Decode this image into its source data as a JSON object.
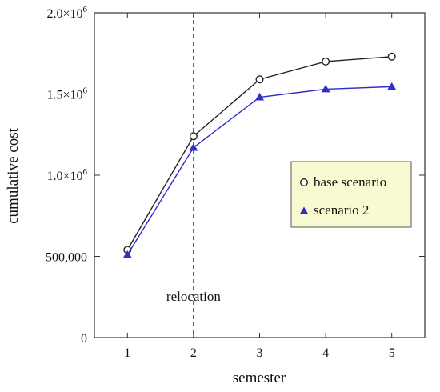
{
  "chart_data": {
    "type": "line",
    "title": "",
    "xlabel": "semester",
    "ylabel": "cumulative cost",
    "x": [
      1,
      2,
      3,
      4,
      5
    ],
    "xlim": [
      0.5,
      5.5
    ],
    "ylim": [
      0,
      2000000
    ],
    "x_ticks": [
      {
        "value": 1,
        "label": "1"
      },
      {
        "value": 2,
        "label": "2"
      },
      {
        "value": 3,
        "label": "3"
      },
      {
        "value": 4,
        "label": "4"
      },
      {
        "value": 5,
        "label": "5"
      }
    ],
    "y_ticks": [
      {
        "value": 0,
        "label": "0"
      },
      {
        "value": 500000,
        "label": "500,000"
      },
      {
        "value": 1000000,
        "label": "1.0×10",
        "exp": "6"
      },
      {
        "value": 1500000,
        "label": "1.5×10",
        "exp": "6"
      },
      {
        "value": 2000000,
        "label": "2.0×10",
        "exp": "6"
      }
    ],
    "series": [
      {
        "name": "base scenario",
        "marker": "open-circle",
        "color": "#222222",
        "values": [
          540000,
          1240000,
          1590000,
          1700000,
          1730000
        ]
      },
      {
        "name": "scenario 2",
        "marker": "filled-triangle",
        "color": "#2e2ec8",
        "values": [
          510000,
          1170000,
          1480000,
          1530000,
          1545000
        ]
      }
    ],
    "annotations": [
      {
        "text": "relocation",
        "x": 2,
        "style": "dashed-vertical-line"
      }
    ],
    "legend_position": "right",
    "grid": false
  }
}
